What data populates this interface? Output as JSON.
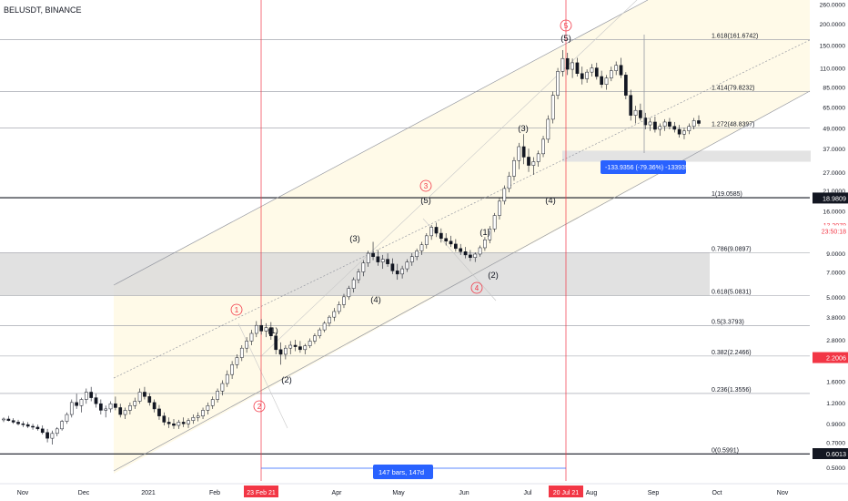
{
  "symbol": "BELUSDT, BINANCE",
  "colors": {
    "up": "#ffffff",
    "down": "#131722",
    "fib_line": "#9598a1",
    "vline": "#f23645",
    "zone": "#d9d9d9",
    "channel": "#9598a1",
    "price_label_red": "#f23645",
    "price_label_black": "#131722",
    "measure": "#2962ff",
    "band": "#fff9e6"
  },
  "chart_data": {
    "type": "candlestick",
    "title": "BELUSDT, BINANCE",
    "y_scale": "log",
    "y_ticks": [
      "260.0000",
      "200.0000",
      "150.0000",
      "110.0000",
      "85.0000",
      "65.0000",
      "49.0000",
      "37.0000",
      "27.0000",
      "21.0000",
      "16.0000",
      "12.0000",
      "9.0000",
      "7.0000",
      "5.0000",
      "3.8000",
      "2.8000",
      "2.2000",
      "1.6000",
      "1.2000",
      "0.9000",
      "0.7000",
      "0.5000"
    ],
    "x_ticks": [
      "Nov",
      "Dec",
      "2021",
      "Feb",
      "Apr",
      "May",
      "Jun",
      "Jul",
      "Aug",
      "Sep",
      "Oct",
      "Nov"
    ],
    "x_highlight_ticks": [
      "23 Feb 21",
      "20 Jul 21"
    ],
    "fib_levels": [
      {
        "label": "1.618(161.6742)",
        "value": 161.6742
      },
      {
        "label": "1.414(79.8232)",
        "value": 79.8232
      },
      {
        "label": "1.272(48.8397)",
        "value": 48.8397
      },
      {
        "label": "1(19.0585)",
        "value": 19.0585
      },
      {
        "label": "0.786(9.0897)",
        "value": 9.0897
      },
      {
        "label": "0.618(5.0831)",
        "value": 5.0831
      },
      {
        "label": "0.5(3.3793)",
        "value": 3.3793
      },
      {
        "label": "0.382(2.2466)",
        "value": 2.2466
      },
      {
        "label": "0.236(1.3556)",
        "value": 1.3556
      },
      {
        "label": "0(0.5991)",
        "value": 0.5991
      }
    ],
    "price_labels": [
      {
        "text": "18.9809",
        "value": 18.9809,
        "style": "black"
      },
      {
        "text": "13.2079",
        "value": 13.2079,
        "style": "red-text"
      },
      {
        "text": "23:50:18",
        "value": 12.2,
        "style": "red-text"
      },
      {
        "text": "2.2006",
        "value": 2.2006,
        "style": "red"
      },
      {
        "text": "0.6013",
        "value": 0.6013,
        "style": "black"
      }
    ],
    "wave_labels": [
      {
        "text": "1",
        "circled": true
      },
      {
        "text": "(1)"
      },
      {
        "text": "(2)"
      },
      {
        "text": "2",
        "circled": true
      },
      {
        "text": "(3)"
      },
      {
        "text": "(4)"
      },
      {
        "text": "3",
        "circled": true
      },
      {
        "text": "(5)"
      },
      {
        "text": "(1)"
      },
      {
        "text": "(2)"
      },
      {
        "text": "4",
        "circled": true
      },
      {
        "text": "(3)"
      },
      {
        "text": "(4)"
      },
      {
        "text": "5",
        "circled": true
      },
      {
        "text": "(5)"
      }
    ],
    "measure_label": "-133.9356 (-79.36%) -1339356",
    "bars_label": "147 bars, 147d",
    "candles": [
      [
        0.95,
        0.98,
        0.92,
        0.96
      ],
      [
        0.96,
        1.0,
        0.93,
        0.94
      ],
      [
        0.94,
        0.97,
        0.9,
        0.92
      ],
      [
        0.92,
        0.95,
        0.88,
        0.9
      ],
      [
        0.9,
        0.93,
        0.86,
        0.89
      ],
      [
        0.89,
        0.92,
        0.85,
        0.87
      ],
      [
        0.87,
        0.9,
        0.83,
        0.86
      ],
      [
        0.86,
        0.89,
        0.82,
        0.84
      ],
      [
        0.84,
        0.88,
        0.78,
        0.8
      ],
      [
        0.8,
        0.84,
        0.7,
        0.74
      ],
      [
        0.74,
        0.82,
        0.68,
        0.79
      ],
      [
        0.79,
        0.86,
        0.76,
        0.84
      ],
      [
        0.84,
        0.95,
        0.82,
        0.93
      ],
      [
        0.93,
        1.05,
        0.9,
        1.02
      ],
      [
        1.02,
        1.25,
        0.98,
        1.2
      ],
      [
        1.2,
        1.35,
        1.1,
        1.15
      ],
      [
        1.15,
        1.28,
        1.05,
        1.25
      ],
      [
        1.25,
        1.45,
        1.18,
        1.38
      ],
      [
        1.38,
        1.48,
        1.22,
        1.28
      ],
      [
        1.28,
        1.35,
        1.12,
        1.18
      ],
      [
        1.18,
        1.25,
        1.02,
        1.08
      ],
      [
        1.08,
        1.15,
        0.98,
        1.1
      ],
      [
        1.1,
        1.22,
        1.05,
        1.18
      ],
      [
        1.18,
        1.3,
        1.08,
        1.12
      ],
      [
        1.12,
        1.18,
        0.98,
        1.02
      ],
      [
        1.02,
        1.12,
        0.96,
        1.08
      ],
      [
        1.08,
        1.2,
        1.02,
        1.15
      ],
      [
        1.15,
        1.28,
        1.1,
        1.22
      ],
      [
        1.22,
        1.45,
        1.18,
        1.38
      ],
      [
        1.38,
        1.48,
        1.25,
        1.3
      ],
      [
        1.3,
        1.36,
        1.15,
        1.2
      ],
      [
        1.2,
        1.25,
        1.05,
        1.1
      ],
      [
        1.1,
        1.16,
        0.95,
        1.0
      ],
      [
        1.0,
        1.05,
        0.88,
        0.92
      ],
      [
        0.92,
        0.98,
        0.85,
        0.9
      ],
      [
        0.9,
        0.96,
        0.84,
        0.88
      ],
      [
        0.88,
        0.95,
        0.84,
        0.92
      ],
      [
        0.92,
        0.98,
        0.86,
        0.9
      ],
      [
        0.9,
        0.97,
        0.85,
        0.94
      ],
      [
        0.94,
        1.02,
        0.9,
        0.98
      ],
      [
        0.98,
        1.05,
        0.93,
        1.0
      ],
      [
        1.0,
        1.12,
        0.96,
        1.08
      ],
      [
        1.08,
        1.2,
        1.02,
        1.15
      ],
      [
        1.15,
        1.3,
        1.1,
        1.25
      ],
      [
        1.25,
        1.45,
        1.2,
        1.4
      ],
      [
        1.4,
        1.62,
        1.32,
        1.55
      ],
      [
        1.55,
        1.85,
        1.48,
        1.75
      ],
      [
        1.75,
        2.1,
        1.65,
        2.0
      ],
      [
        2.0,
        2.3,
        1.9,
        2.2
      ],
      [
        2.2,
        2.6,
        2.1,
        2.5
      ],
      [
        2.5,
        2.9,
        2.35,
        2.75
      ],
      [
        2.75,
        3.2,
        2.6,
        3.05
      ],
      [
        3.05,
        3.6,
        2.9,
        3.4
      ],
      [
        3.4,
        3.7,
        3.0,
        3.15
      ],
      [
        3.15,
        3.5,
        2.9,
        3.3
      ],
      [
        3.3,
        3.55,
        2.8,
        2.95
      ],
      [
        2.95,
        3.1,
        2.3,
        2.45
      ],
      [
        2.45,
        2.7,
        2.0,
        2.3
      ],
      [
        2.3,
        2.6,
        2.15,
        2.5
      ],
      [
        2.5,
        2.75,
        2.3,
        2.6
      ],
      [
        2.6,
        2.8,
        2.4,
        2.55
      ],
      [
        2.55,
        2.75,
        2.35,
        2.45
      ],
      [
        2.45,
        2.65,
        2.3,
        2.58
      ],
      [
        2.58,
        2.85,
        2.5,
        2.75
      ],
      [
        2.75,
        3.05,
        2.65,
        2.95
      ],
      [
        2.95,
        3.3,
        2.85,
        3.2
      ],
      [
        3.2,
        3.6,
        3.1,
        3.5
      ],
      [
        3.5,
        3.9,
        3.35,
        3.8
      ],
      [
        3.8,
        4.3,
        3.6,
        4.1
      ],
      [
        4.1,
        4.7,
        3.95,
        4.5
      ],
      [
        4.5,
        5.2,
        4.3,
        5.0
      ],
      [
        5.0,
        5.8,
        4.8,
        5.6
      ],
      [
        5.6,
        6.5,
        5.3,
        6.3
      ],
      [
        6.3,
        7.3,
        6.0,
        7.0
      ],
      [
        7.0,
        8.2,
        6.6,
        7.9
      ],
      [
        7.9,
        9.3,
        7.5,
        9.0
      ],
      [
        9.0,
        10.5,
        8.2,
        8.6
      ],
      [
        8.6,
        9.4,
        7.6,
        8.0
      ],
      [
        8.0,
        8.8,
        7.3,
        8.3
      ],
      [
        8.3,
        9.0,
        7.5,
        7.8
      ],
      [
        7.8,
        8.4,
        6.8,
        7.1
      ],
      [
        7.1,
        7.8,
        6.3,
        6.8
      ],
      [
        6.8,
        7.6,
        6.4,
        7.3
      ],
      [
        7.3,
        8.3,
        7.0,
        8.0
      ],
      [
        8.0,
        9.0,
        7.6,
        8.6
      ],
      [
        8.6,
        9.6,
        8.2,
        9.3
      ],
      [
        9.3,
        10.5,
        8.8,
        10.1
      ],
      [
        10.1,
        11.8,
        9.6,
        11.4
      ],
      [
        11.4,
        13.2,
        10.8,
        12.8
      ],
      [
        12.8,
        13.6,
        11.2,
        11.8
      ],
      [
        11.8,
        12.6,
        10.4,
        11.0
      ],
      [
        11.0,
        11.8,
        10.0,
        10.6
      ],
      [
        10.6,
        11.4,
        9.8,
        10.2
      ],
      [
        10.2,
        10.9,
        9.2,
        9.6
      ],
      [
        9.6,
        10.2,
        8.8,
        9.2
      ],
      [
        9.2,
        9.8,
        8.4,
        8.8
      ],
      [
        8.8,
        9.4,
        8.1,
        8.5
      ],
      [
        8.5,
        9.1,
        8.0,
        8.9
      ],
      [
        8.9,
        10.0,
        8.6,
        9.7
      ],
      [
        9.7,
        11.2,
        9.3,
        10.8
      ],
      [
        10.8,
        13.0,
        10.3,
        12.5
      ],
      [
        12.5,
        15.5,
        12.0,
        15.0
      ],
      [
        15.0,
        19.0,
        14.2,
        18.2
      ],
      [
        18.2,
        22.5,
        17.4,
        21.6
      ],
      [
        21.6,
        27.0,
        20.5,
        25.5
      ],
      [
        25.5,
        33.0,
        24.0,
        31.5
      ],
      [
        31.5,
        40.0,
        28.0,
        38.0
      ],
      [
        38.0,
        45.0,
        30.0,
        33.0
      ],
      [
        33.0,
        37.0,
        27.0,
        29.5
      ],
      [
        29.5,
        33.0,
        26.0,
        31.0
      ],
      [
        31.0,
        36.0,
        29.0,
        34.5
      ],
      [
        34.5,
        44.0,
        33.0,
        42.0
      ],
      [
        42.0,
        58.0,
        40.0,
        55.0
      ],
      [
        55.0,
        80.0,
        52.0,
        76.0
      ],
      [
        76.0,
        110.0,
        72.0,
        105.0
      ],
      [
        105.0,
        140.0,
        98.0,
        125.0
      ],
      [
        125.0,
        135.0,
        100.0,
        108.0
      ],
      [
        108.0,
        125.0,
        96.0,
        118.0
      ],
      [
        118.0,
        126.0,
        98.0,
        102.0
      ],
      [
        102.0,
        112.0,
        88.0,
        95.0
      ],
      [
        95.0,
        108.0,
        90.0,
        104.0
      ],
      [
        104.0,
        116.0,
        98.0,
        110.0
      ],
      [
        110.0,
        118.0,
        94.0,
        98.0
      ],
      [
        98.0,
        106.0,
        84.0,
        88.0
      ],
      [
        88.0,
        100.0,
        82.0,
        96.0
      ],
      [
        96.0,
        112.0,
        92.0,
        106.0
      ],
      [
        106.0,
        120.0,
        100.0,
        114.0
      ],
      [
        114.0,
        126.0,
        96.0,
        100.0
      ],
      [
        100.0,
        104.0,
        72.0,
        76.0
      ],
      [
        76.0,
        82.0,
        54.0,
        58.0
      ],
      [
        58.0,
        66.0,
        52.0,
        62.0
      ],
      [
        62.0,
        68.0,
        54.0,
        56.0
      ],
      [
        56.0,
        60.0,
        48.0,
        51.0
      ],
      [
        51.0,
        56.0,
        47.0,
        53.0
      ],
      [
        53.0,
        57.0,
        46.0,
        48.0
      ],
      [
        48.0,
        52.0,
        44.0,
        50.0
      ],
      [
        50.0,
        55.0,
        47.0,
        53.0
      ],
      [
        53.0,
        56.0,
        48.0,
        50.0
      ],
      [
        50.0,
        53.0,
        46.0,
        48.0
      ],
      [
        48.0,
        51.0,
        43.0,
        45.0
      ],
      [
        45.0,
        49.0,
        42.0,
        47.0
      ],
      [
        47.0,
        52.0,
        45.0,
        50.0
      ],
      [
        50.0,
        56.0,
        48.0,
        54.0
      ],
      [
        54.0,
        58.0,
        50.0,
        52.0
      ]
    ]
  }
}
